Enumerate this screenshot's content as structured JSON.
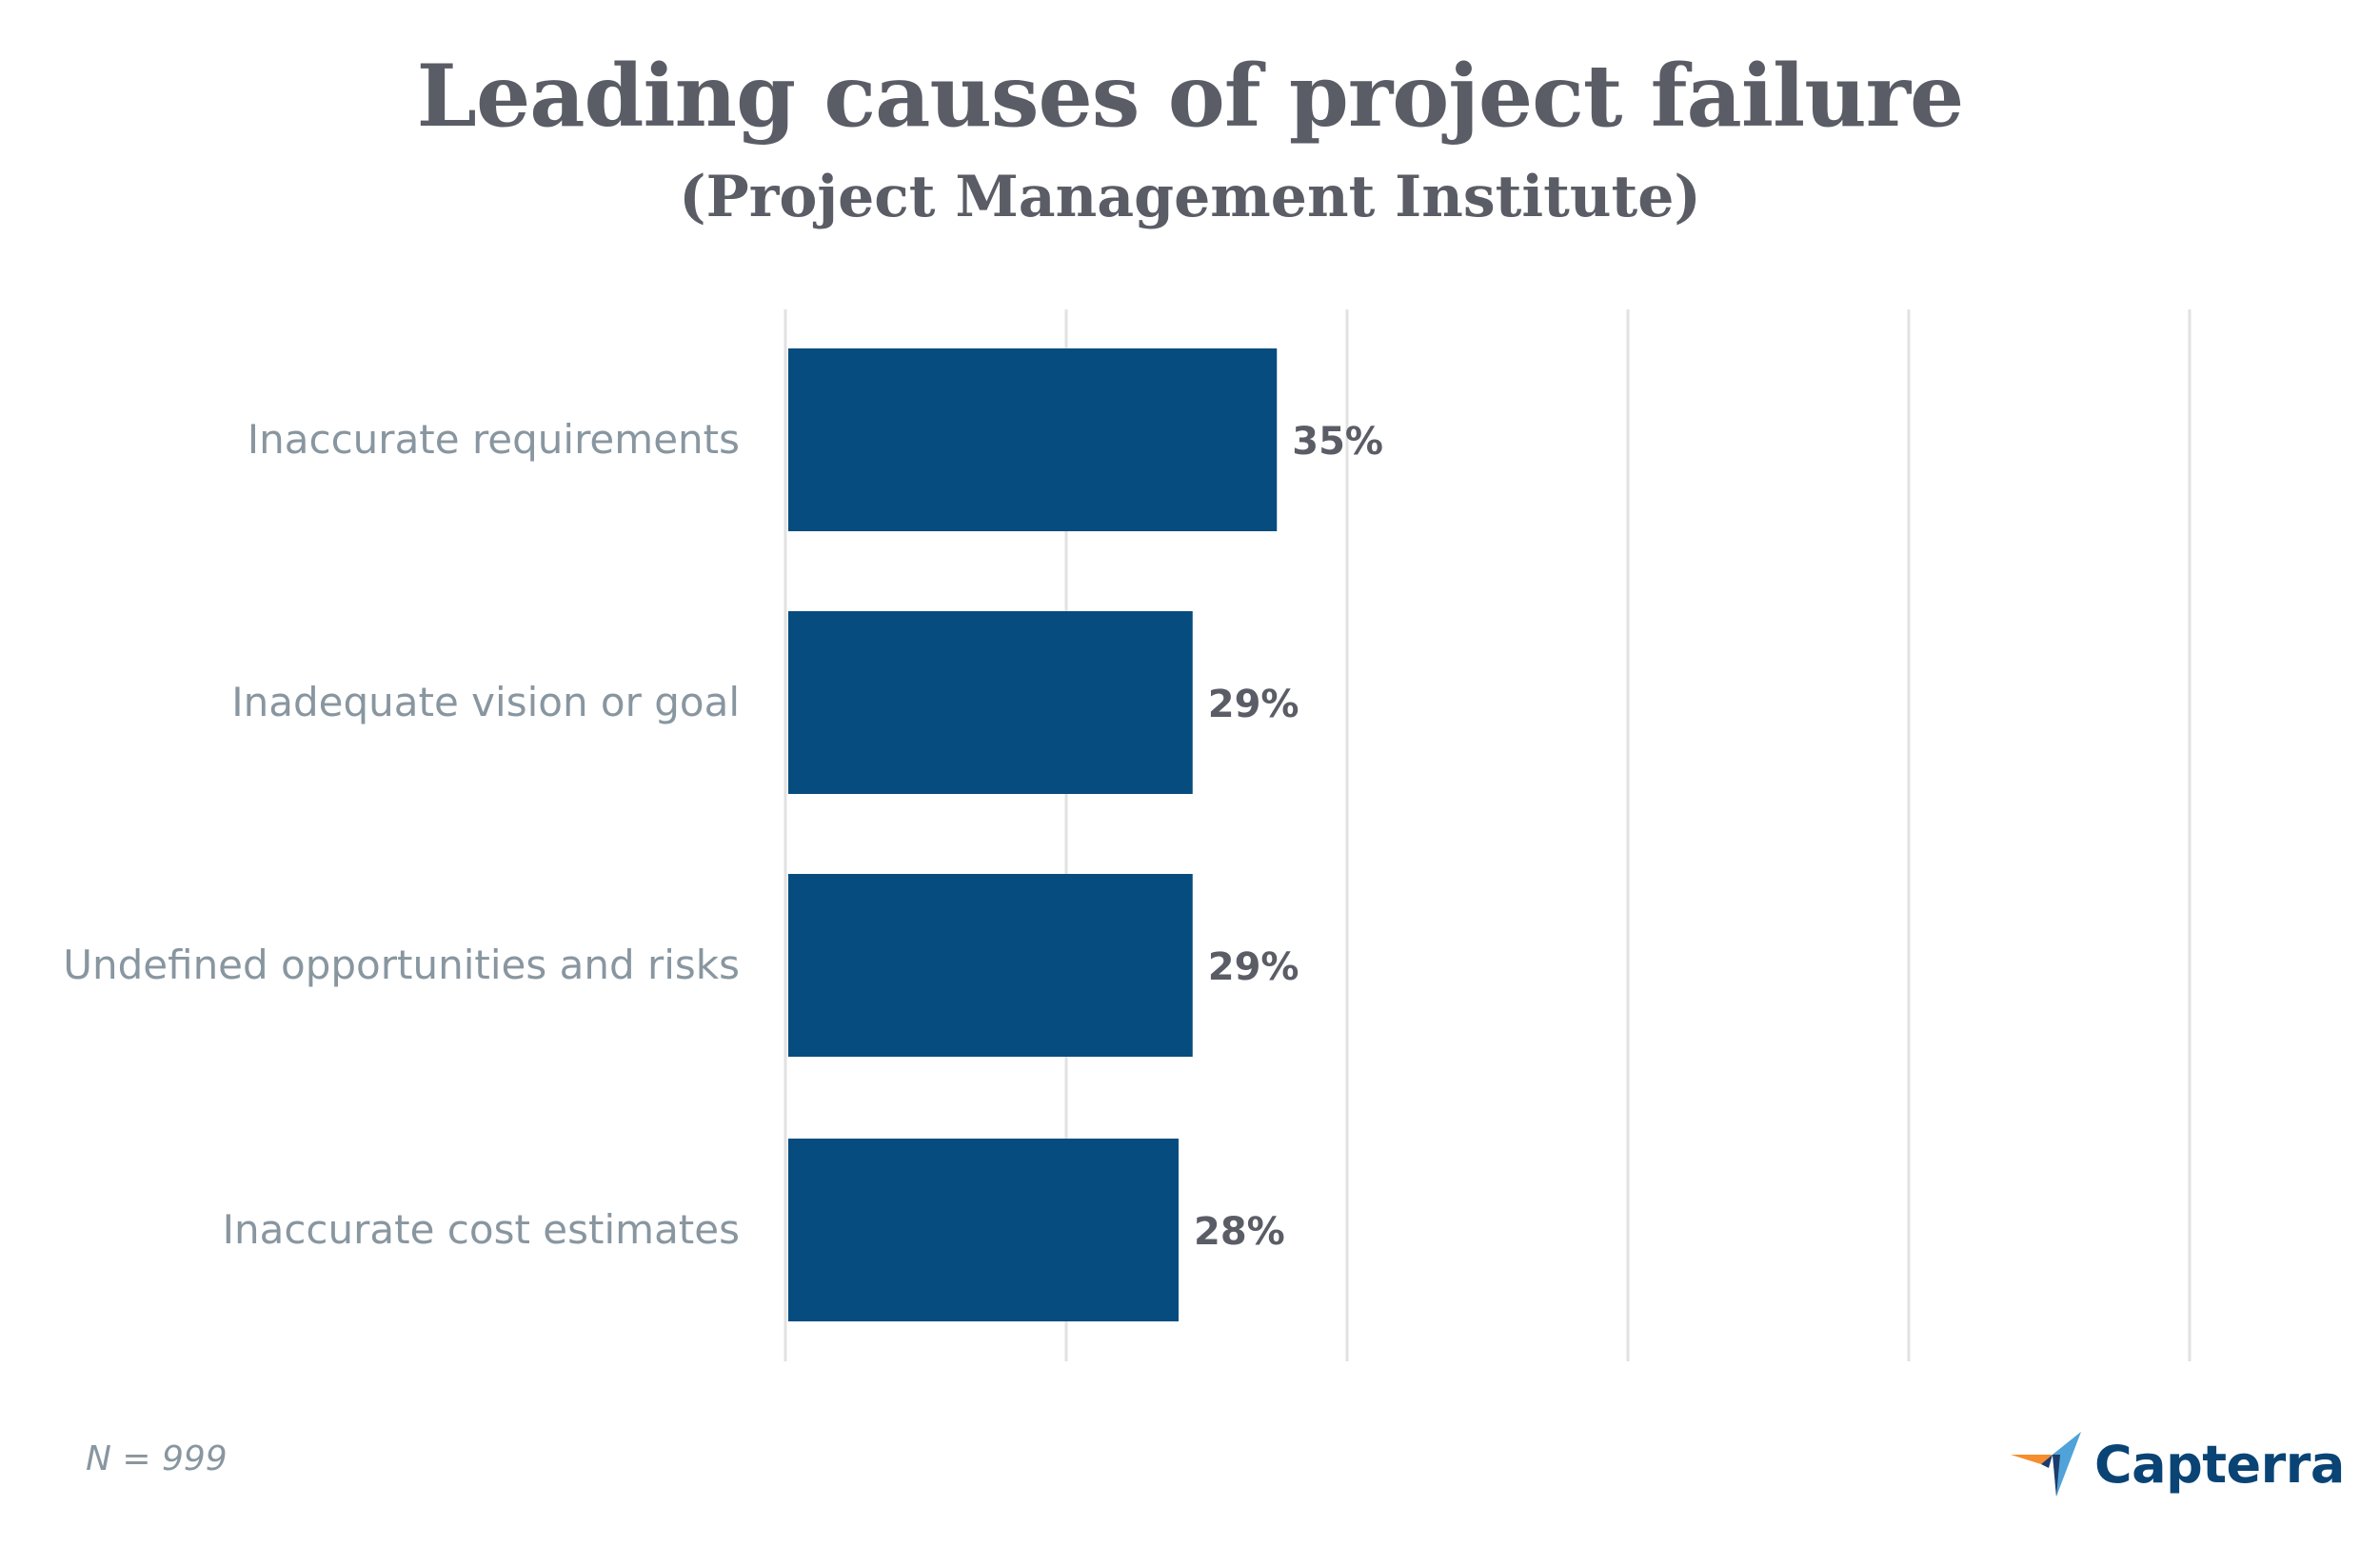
{
  "header": {
    "title": "Leading causes of project failure",
    "subtitle": "(Project Management Institute)"
  },
  "chart_data": {
    "type": "bar",
    "orientation": "horizontal",
    "title": "Leading causes of project failure",
    "subtitle": "(Project Management Institute)",
    "categories": [
      "Inaccurate requirements",
      "Inadequate vision or goal",
      "Undefined opportunities and risks",
      "Inaccurate cost estimates"
    ],
    "values": [
      35,
      29,
      29,
      28
    ],
    "data_labels": [
      "35%",
      "29%",
      "29%",
      "28%"
    ],
    "unit": "%",
    "xlim": [
      0,
      100
    ],
    "gridlines": [
      0,
      20,
      40,
      60,
      80,
      100
    ],
    "grid": true,
    "bar_color": "#064c7e"
  },
  "footer": {
    "note": "N = 999",
    "brand": "Capterra",
    "brand_icon": "capterra-arrow-icon"
  },
  "colors": {
    "title": "#5a5d66",
    "category_label": "#8896a0",
    "value_label": "#5a5d66",
    "gridline": "#e2e2e2",
    "brand": "#0a4475"
  }
}
